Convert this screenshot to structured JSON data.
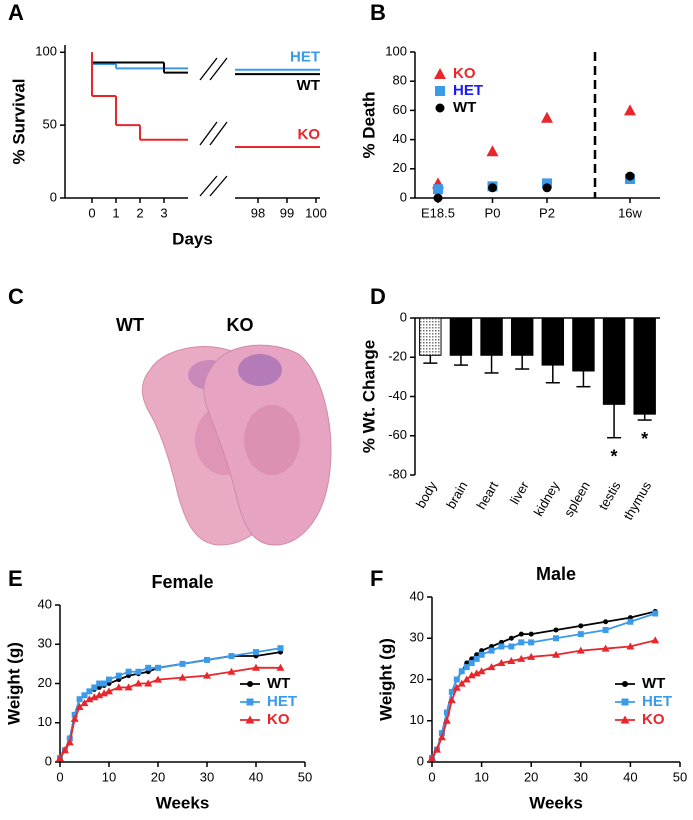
{
  "chart_data": [
    {
      "type": "step",
      "panel": "A",
      "ylabel": "% Survival",
      "xlabel": "Days",
      "x": [
        0,
        1,
        2,
        3,
        98,
        99,
        100
      ],
      "ylim": [
        0,
        105
      ],
      "yticks": [
        0,
        50,
        100
      ],
      "series": [
        {
          "name": "HET",
          "color": "#3c9be8",
          "values": [
            92,
            89,
            89,
            89,
            88,
            88,
            88
          ]
        },
        {
          "name": "WT",
          "color": "#000000",
          "values": [
            93,
            93,
            93,
            86,
            85,
            85,
            85
          ]
        },
        {
          "name": "KO",
          "color": "#e8262b",
          "values": [
            70,
            50,
            40,
            40,
            35,
            35,
            35
          ]
        }
      ]
    },
    {
      "type": "scatter",
      "panel": "B",
      "ylabel": "% Death",
      "categories": [
        "E18.5",
        "P0",
        "P2",
        "16w"
      ],
      "ylim": [
        0,
        100
      ],
      "yticks": [
        0,
        20,
        40,
        60,
        80,
        100
      ],
      "series": [
        {
          "name": "KO",
          "color": "#e8262b",
          "marker": "triangle",
          "values": [
            10,
            32,
            55,
            60
          ]
        },
        {
          "name": "HET",
          "color": "#3c9be8",
          "marker": "square",
          "values": [
            6,
            8,
            10,
            13
          ]
        },
        {
          "name": "WT",
          "color": "#000000",
          "marker": "circle",
          "values": [
            0,
            7,
            7,
            15
          ]
        }
      ]
    },
    {
      "type": "image",
      "panel": "C",
      "labels": [
        "WT",
        "KO"
      ]
    },
    {
      "type": "bar",
      "panel": "D",
      "ylabel": "% Wt. Change",
      "categories": [
        "body",
        "brain",
        "heart",
        "liver",
        "kidney",
        "spleen",
        "testis",
        "thymus"
      ],
      "values": [
        -19,
        -19,
        -19,
        -19,
        -24,
        -27,
        -44,
        -49
      ],
      "errors": [
        4,
        5,
        9,
        7,
        9,
        8,
        17,
        3
      ],
      "color": "#000000",
      "ylim": [
        -80,
        0
      ],
      "yticks": [
        0,
        -20,
        -40,
        -60,
        -80
      ],
      "annotations": [
        {
          "x": "testis",
          "text": "*"
        },
        {
          "x": "thymus",
          "text": "*"
        }
      ]
    },
    {
      "type": "line",
      "panel": "E",
      "title": "Female",
      "xlabel": "Weeks",
      "ylabel": "Weight (g)",
      "legend": "lower right",
      "x": [
        0,
        1,
        2,
        3,
        4,
        5,
        6,
        7,
        8,
        9,
        10,
        12,
        14,
        16,
        18,
        20,
        25,
        30,
        35,
        40,
        45
      ],
      "xlim": [
        0,
        50
      ],
      "xticks": [
        0,
        10,
        20,
        30,
        40,
        50
      ],
      "ylim": [
        0,
        40
      ],
      "yticks": [
        0,
        10,
        20,
        30,
        40
      ],
      "series": [
        {
          "name": "WT",
          "color": "#000000",
          "marker": "circle",
          "values": [
            1,
            3,
            6,
            12,
            16,
            17,
            18,
            18.5,
            19,
            19.5,
            20,
            21,
            22,
            22.5,
            23,
            24,
            25,
            26,
            27,
            27,
            28
          ]
        },
        {
          "name": "HET",
          "color": "#3c9be8",
          "marker": "square",
          "values": [
            1,
            3,
            6,
            12,
            16,
            17,
            18,
            19,
            20,
            20,
            21,
            22,
            23,
            23,
            24,
            24,
            25,
            26,
            27,
            28,
            29
          ]
        },
        {
          "name": "KO",
          "color": "#e8262b",
          "marker": "triangle",
          "values": [
            1,
            3,
            5,
            11,
            14,
            15,
            16,
            16.5,
            17,
            17.5,
            18,
            19,
            19,
            20,
            20,
            21,
            21.5,
            22,
            23,
            24,
            24
          ]
        }
      ]
    },
    {
      "type": "line",
      "panel": "F",
      "title": "Male",
      "xlabel": "Weeks",
      "ylabel": "Weight (g)",
      "legend": "lower right",
      "x": [
        0,
        1,
        2,
        3,
        4,
        5,
        6,
        7,
        8,
        9,
        10,
        12,
        14,
        16,
        18,
        20,
        25,
        30,
        35,
        40,
        45
      ],
      "xlim": [
        0,
        50
      ],
      "xticks": [
        0,
        10,
        20,
        30,
        40,
        50
      ],
      "ylim": [
        0,
        40
      ],
      "yticks": [
        0,
        10,
        20,
        30,
        40
      ],
      "series": [
        {
          "name": "WT",
          "color": "#000000",
          "marker": "circle",
          "values": [
            1,
            3,
            7,
            12,
            17,
            20,
            22,
            24,
            25,
            26,
            27,
            28,
            29,
            30,
            31,
            31,
            32,
            33,
            34,
            35,
            36.5
          ]
        },
        {
          "name": "HET",
          "color": "#3c9be8",
          "marker": "square",
          "values": [
            1,
            3,
            7,
            12,
            17,
            20,
            22,
            23,
            24,
            25,
            26,
            27,
            28,
            28,
            29,
            29,
            30,
            31,
            32,
            34,
            36
          ]
        },
        {
          "name": "KO",
          "color": "#e8262b",
          "marker": "triangle",
          "values": [
            1,
            3,
            6,
            10,
            15,
            18,
            19,
            20,
            21,
            21.5,
            22,
            23,
            24,
            24.5,
            25,
            25.5,
            26,
            27,
            27.5,
            28,
            29.5
          ]
        }
      ]
    }
  ]
}
